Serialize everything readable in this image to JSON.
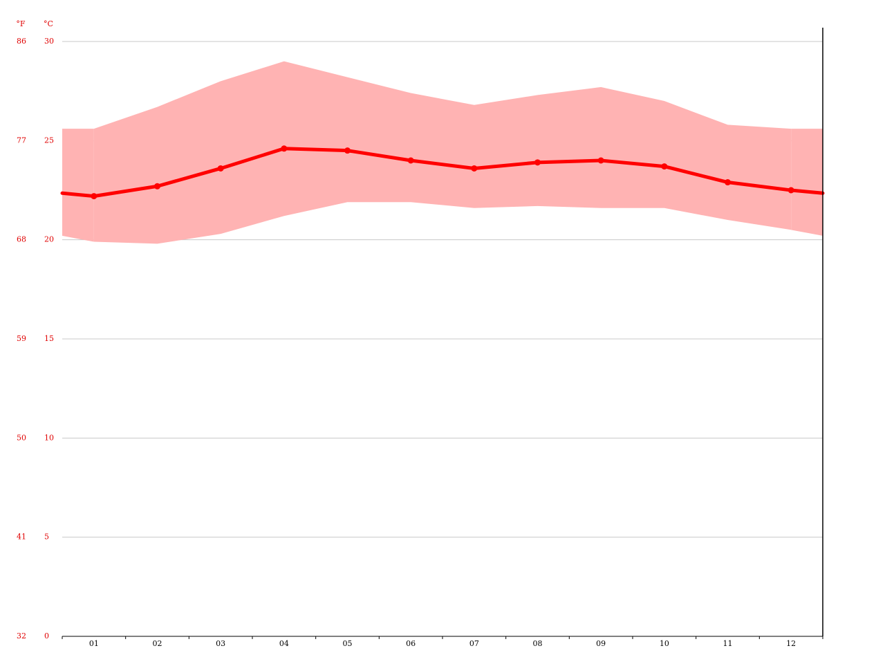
{
  "chart_data": {
    "type": "line",
    "y_unit_label": "°C",
    "y2_unit_label": "°F",
    "categories": [
      "01",
      "02",
      "03",
      "04",
      "05",
      "06",
      "07",
      "08",
      "09",
      "10",
      "11",
      "12"
    ],
    "series": [
      {
        "color": "#ff0000",
        "values": [
          22.2,
          22.7,
          23.6,
          24.6,
          24.5,
          24.0,
          23.6,
          23.9,
          24.0,
          23.7,
          22.9,
          22.5
        ]
      }
    ],
    "range": {
      "color": "#ffb3b3",
      "upper": [
        25.6,
        26.7,
        28.0,
        29.0,
        28.2,
        27.4,
        26.8,
        27.3,
        27.7,
        27.0,
        25.8,
        25.6
      ],
      "lower": [
        19.9,
        19.8,
        20.3,
        21.2,
        21.9,
        21.9,
        21.6,
        21.7,
        21.6,
        21.6,
        21.0,
        20.5
      ]
    },
    "ylim": [
      0,
      30
    ],
    "yticks": [
      0,
      5,
      10,
      15,
      20,
      25,
      30
    ],
    "y2lim": [
      32,
      86
    ],
    "y2ticks": [
      32,
      41,
      50,
      59,
      68,
      77,
      86
    ],
    "grid": true
  }
}
